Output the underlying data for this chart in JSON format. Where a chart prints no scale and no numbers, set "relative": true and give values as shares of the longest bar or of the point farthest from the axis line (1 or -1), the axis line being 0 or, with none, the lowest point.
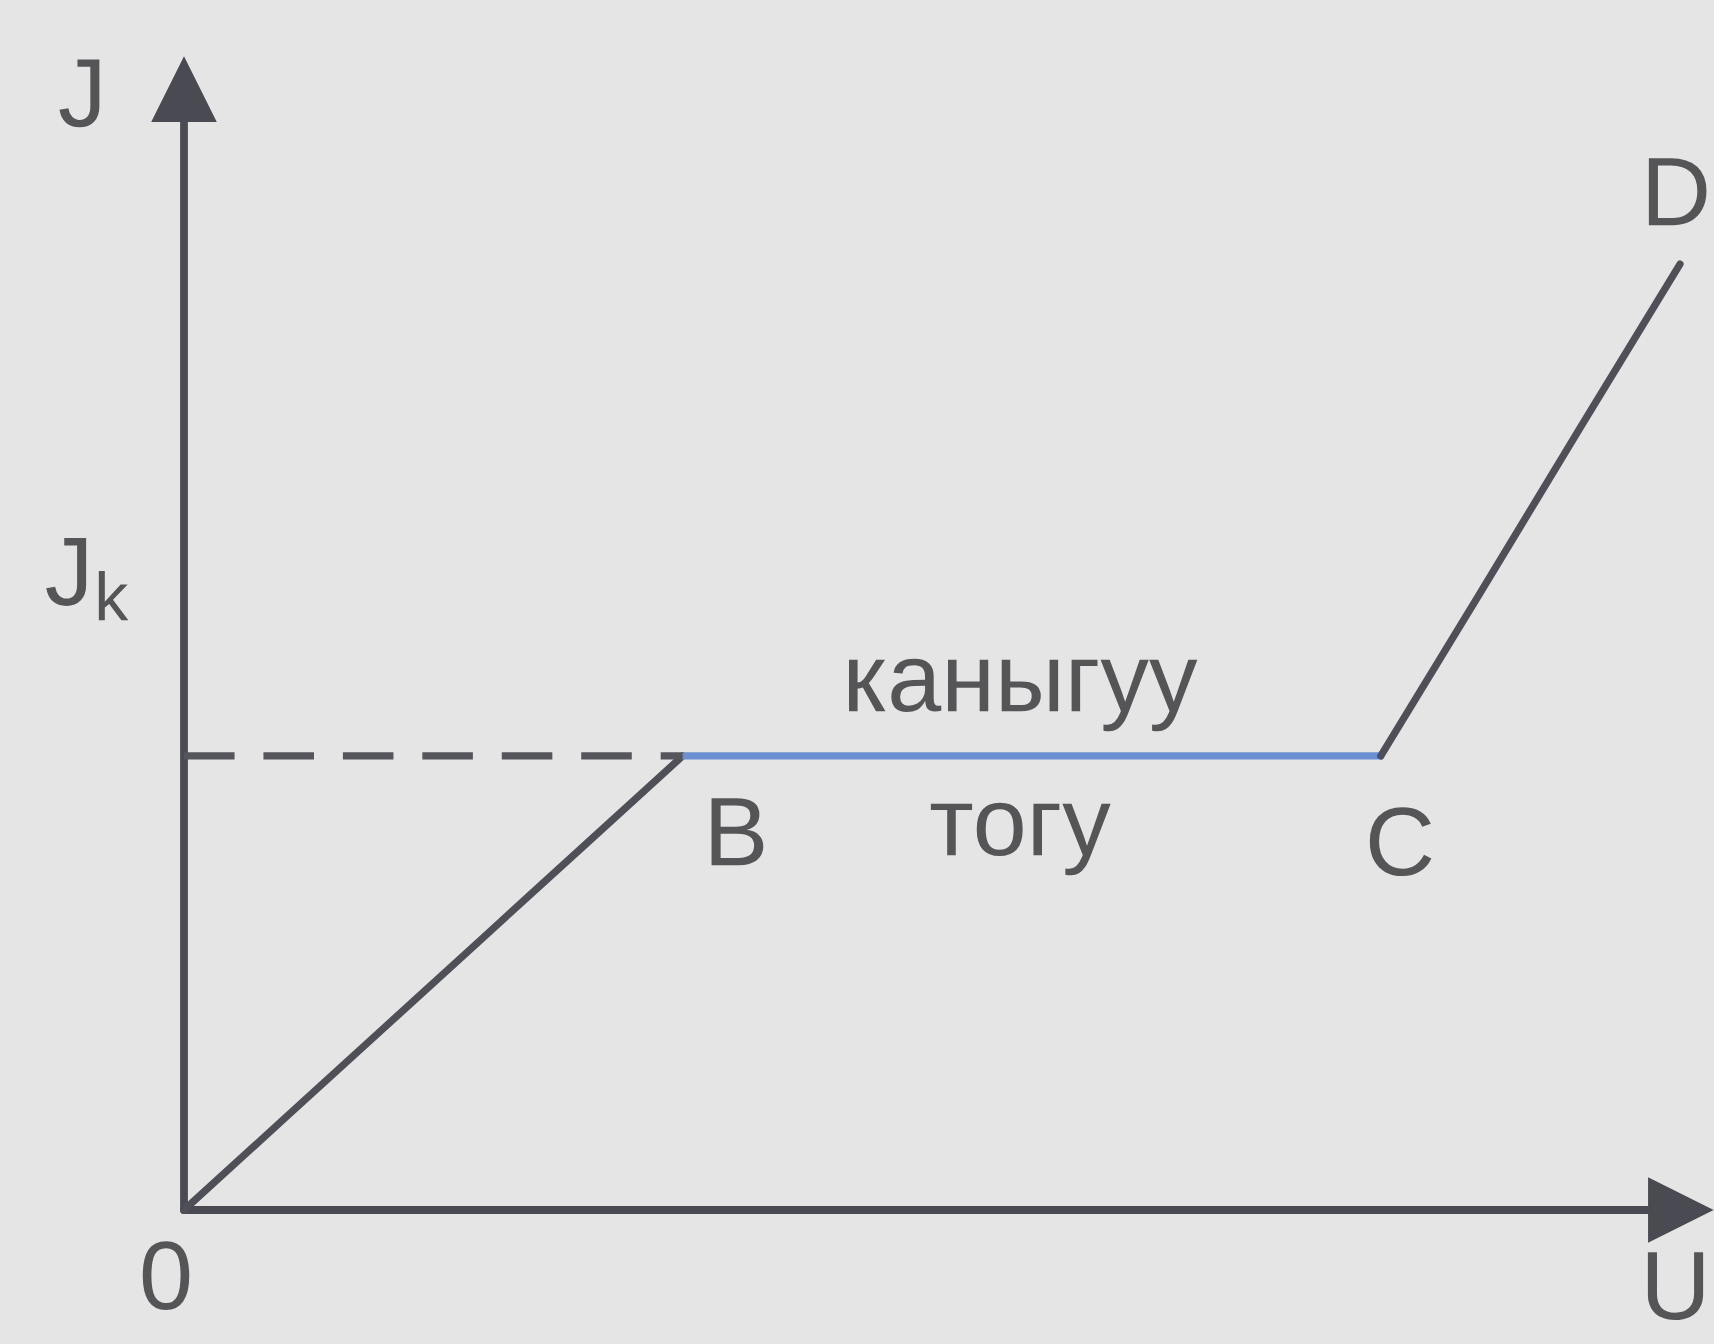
{
  "chart_data": {
    "type": "line",
    "relative": true,
    "xlabel": "U",
    "ylabel": "J",
    "line_style": "solid",
    "categories": [
      null,
      null,
      null,
      null,
      null,
      null,
      null,
      null,
      null,
      null,
      null,
      null,
      null,
      null,
      null,
      null
    ],
    "series": [
      {
        "color": "#4f4f58",
        "values": [
          0,
          0.096,
          0.192,
          0.288,
          0.384,
          0.48,
          null,
          null,
          null,
          null,
          null,
          null,
          null,
          null,
          null,
          null
        ]
      },
      {
        "color": "#6b8fd2",
        "values": [
          null,
          null,
          null,
          null,
          null,
          0.48,
          0.48,
          0.48,
          0.48,
          0.48,
          0.48,
          0.48,
          0.48,
          null,
          null,
          null
        ]
      },
      {
        "color": "#4f4f58",
        "values": [
          null,
          null,
          null,
          null,
          null,
          null,
          null,
          null,
          null,
          null,
          null,
          null,
          0.48,
          0.653,
          0.827,
          1
        ]
      },
      {
        "color": "#55555c",
        "line_style": "dashed",
        "values": [
          0.48,
          0.48,
          0.48,
          0.48,
          0.48,
          0.48,
          null,
          null,
          null,
          null,
          null,
          null,
          null,
          null,
          null,
          null
        ]
      }
    ],
    "annotations": [
      "J$_{k}$",
      "0",
      "B",
      "C",
      "D",
      "каныгуу",
      "тогу"
    ]
  }
}
